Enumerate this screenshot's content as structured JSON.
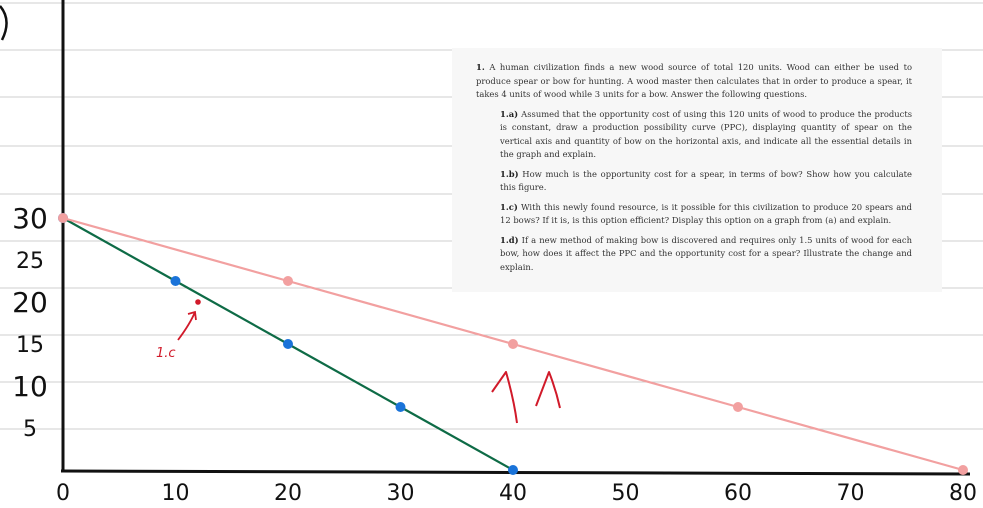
{
  "question": {
    "intro_num": "1.",
    "intro": "A human civilization finds a new wood source of total 120 units. Wood can either be used to produce spear or bow for hunting. A wood master then calculates that in order to produce a spear, it takes 4 units of wood while 3 units for a bow. Answer the following questions.",
    "parts": [
      {
        "label": "1.a)",
        "text": "Assumed that the opportunity cost of using this 120 units of wood to produce the products is constant, draw a production possibility curve (PPC), displaying quantity of spear on the vertical axis and quantity of bow on the horizontal axis, and indicate all the essential details in the graph and explain."
      },
      {
        "label": "1.b)",
        "text": "How much is the opportunity cost for a spear, in terms of bow? Show how you calculate this figure."
      },
      {
        "label": "1.c)",
        "text": "With this newly found resource, is it possible for this civilization to produce 20 spears and 12 bows? If it is, is this option efficient? Display this option on a graph from (a) and explain."
      },
      {
        "label": "1.d)",
        "text": "If a new method of making bow is discovered and requires only 1.5 units of wood for each bow, how does it affect the PPC and the opportunity cost for a spear? Illustrate the change and explain."
      }
    ]
  },
  "chart_data": {
    "type": "line",
    "x_ticks": [
      "0",
      "10",
      "20",
      "30",
      "40",
      "50",
      "60",
      "70",
      "80"
    ],
    "y_ticks": [
      "5",
      "10",
      "15",
      "20",
      "25",
      "30"
    ],
    "xlim": [
      0,
      80
    ],
    "ylim": [
      0,
      30
    ],
    "series": [
      {
        "color": "#0e6b46",
        "marker_color": "#1a73d9",
        "points": [
          [
            0,
            30
          ],
          [
            10,
            22.5
          ],
          [
            20,
            15
          ],
          [
            30,
            7.5
          ],
          [
            40,
            0
          ]
        ]
      },
      {
        "color": "#f2a0a0",
        "marker_color": "#f2a0a0",
        "points": [
          [
            0,
            30
          ],
          [
            20,
            22.5
          ],
          [
            40,
            15
          ],
          [
            60,
            7.5
          ],
          [
            80,
            0
          ]
        ]
      }
    ],
    "annotations": [
      {
        "text": "1.c",
        "point": [
          12,
          20
        ],
        "color": "#d11a2a"
      }
    ],
    "shift_arrows_color": "#d11a2a",
    "grid": true
  }
}
